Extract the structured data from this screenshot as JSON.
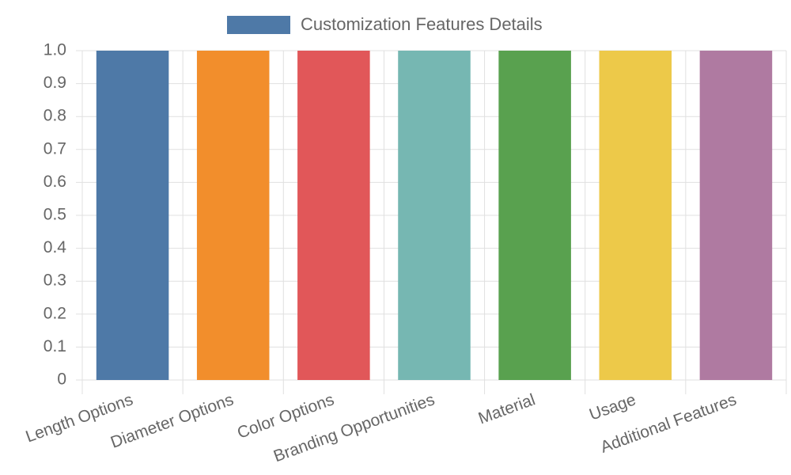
{
  "chart_data": {
    "type": "bar",
    "categories": [
      "Length Options",
      "Diameter Options",
      "Color Options",
      "Branding Opportunities",
      "Material",
      "Usage",
      "Additional Features"
    ],
    "series": [
      {
        "name": "Customization Features Details",
        "color": "#4e79a7",
        "colors": [
          "#4e79a7",
          "#f28e2c",
          "#e15759",
          "#76b7b2",
          "#59a14f",
          "#edc949",
          "#af7aa1"
        ],
        "values": [
          1,
          1,
          1,
          1,
          1,
          1,
          1
        ]
      }
    ],
    "ylim": [
      0,
      1
    ],
    "yticks": [
      0,
      0.1,
      0.2,
      0.3,
      0.4,
      0.5,
      0.6,
      0.7,
      0.8,
      0.9,
      {
        "value": 1,
        "label": "1.0"
      }
    ],
    "grid": true,
    "legend": "top"
  }
}
